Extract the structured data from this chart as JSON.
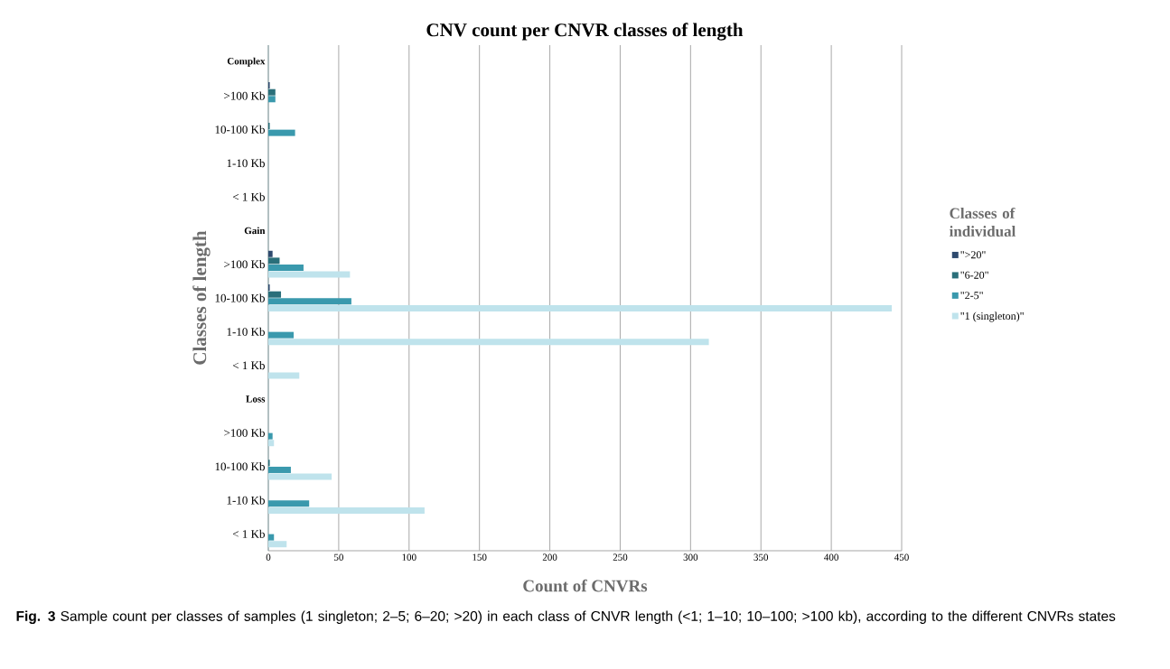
{
  "chart_data": {
    "type": "bar",
    "orientation": "horizontal",
    "title": "CNV count per CNVR classes of length",
    "xlabel": "Count of CNVRs",
    "ylabel": "Classes of length",
    "legend_title": "Classes of individual",
    "categories": [
      "Complex",
      ">100  Kb",
      "10-100 Kb",
      "1-10 Kb",
      "< 1 Kb",
      "Gain",
      ">100  Kb",
      "10-100 Kb",
      "1-10 Kb",
      "< 1 Kb",
      "Loss",
      ">100  Kb",
      "10-100 Kb",
      "1-10 Kb",
      "< 1 Kb"
    ],
    "series": [
      {
        "name": "\">20\"",
        "color": "#2e4a6e",
        "values": [
          null,
          1,
          null,
          null,
          null,
          null,
          3,
          1,
          null,
          null,
          null,
          null,
          null,
          null,
          null
        ]
      },
      {
        "name": "\"6-20\"",
        "color": "#2a6f7a",
        "values": [
          null,
          5,
          1,
          null,
          null,
          null,
          8,
          9,
          null,
          null,
          null,
          null,
          1,
          null,
          null
        ]
      },
      {
        "name": "\"2-5\"",
        "color": "#3a99ad",
        "values": [
          null,
          5,
          19,
          null,
          null,
          null,
          25,
          59,
          18,
          null,
          null,
          3,
          16,
          29,
          4
        ]
      },
      {
        "name": "\"1 (singleton)\"",
        "color": "#bfe3ec",
        "values": [
          null,
          null,
          null,
          null,
          null,
          null,
          58,
          443,
          313,
          22,
          null,
          4,
          45,
          111,
          13
        ]
      }
    ],
    "xlim": [
      0,
      450
    ],
    "xticks": [
      0,
      50,
      100,
      150,
      200,
      250,
      300,
      350,
      400,
      450
    ],
    "grid": "x",
    "legend": "right",
    "annotations": [
      "**Fig. 3** Sample count per classes of samples (1 singleton; 2–5; 6–20; >20) in each class of CNVR length (<1; 1–10; 10–100; >100 kb), according to the different CNVRs states"
    ]
  }
}
